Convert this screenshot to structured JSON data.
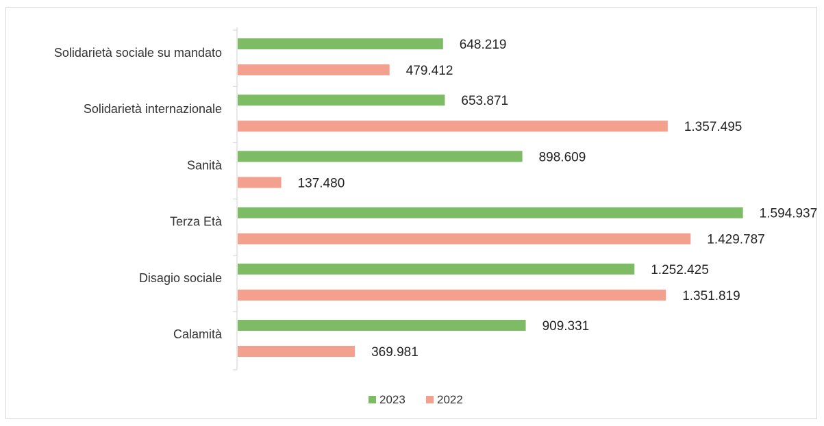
{
  "chart_data": {
    "type": "bar",
    "orientation": "horizontal",
    "categories": [
      "Solidarietà sociale su mandato",
      "Solidarietà internazionale",
      "Sanità",
      "Terza Età",
      "Disagio sociale",
      "Calamità"
    ],
    "series": [
      {
        "name": "2023",
        "color": "#7dbb65",
        "values": [
          648219,
          653871,
          898609,
          1594937,
          1252425,
          909331
        ],
        "labels": [
          "648.219",
          "653.871",
          "898.609",
          "1.594.937",
          "1.252.425",
          "909.331"
        ]
      },
      {
        "name": "2022",
        "color": "#f4a08e",
        "values": [
          479412,
          1357495,
          137480,
          1429787,
          1351819,
          369981
        ],
        "labels": [
          "479.412",
          "1.357.495",
          "137.480",
          "1.429.787",
          "1.351.819",
          "369.981"
        ]
      }
    ],
    "xlim": [
      0,
      1600000
    ],
    "grid": false,
    "legend_position": "bottom"
  }
}
